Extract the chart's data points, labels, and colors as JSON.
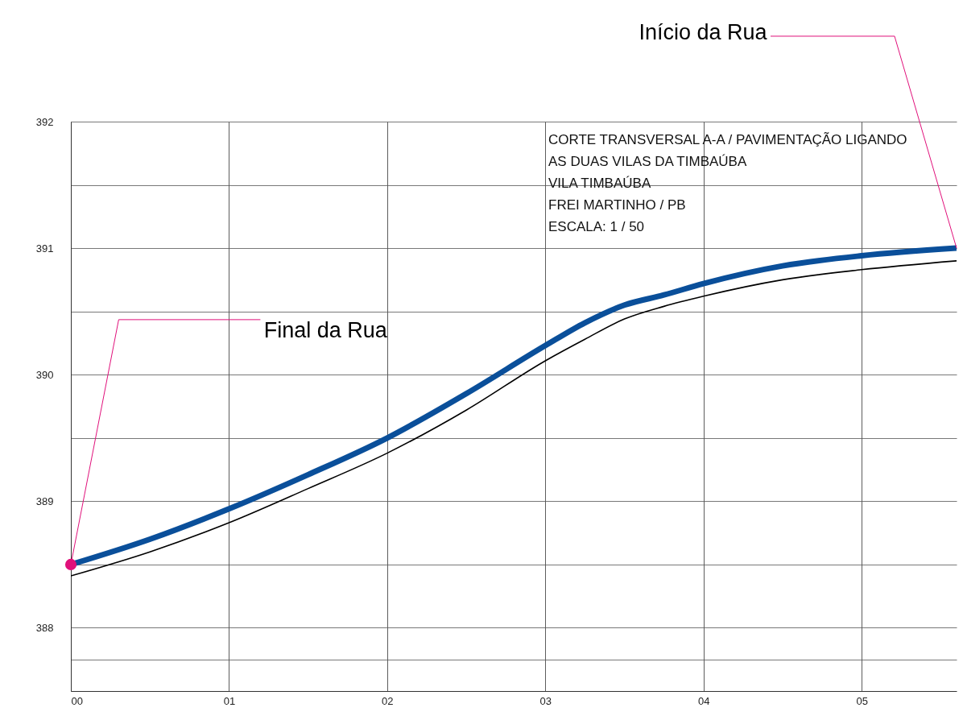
{
  "chart_data": {
    "type": "line",
    "x": [
      0,
      0.5,
      1,
      1.5,
      2,
      2.5,
      3,
      3.25,
      3.5,
      3.75,
      4,
      4.5,
      5,
      5.6
    ],
    "series": [
      {
        "color": "#0a4f9a",
        "values": [
          388.5,
          388.7,
          388.94,
          389.21,
          389.5,
          389.85,
          390.23,
          390.41,
          390.55,
          390.63,
          390.72,
          390.86,
          390.94,
          391.0
        ]
      },
      {
        "color": "#000000",
        "values": [
          388.41,
          388.6,
          388.83,
          389.1,
          389.38,
          389.72,
          390.11,
          390.28,
          390.44,
          390.54,
          390.62,
          390.75,
          390.83,
          390.9
        ]
      },
      {
        "type": "scatter",
        "color": "#e0107a",
        "marker": "circle",
        "x": [
          0
        ],
        "values": [
          388.5
        ]
      }
    ],
    "xlim": [
      0,
      5.6
    ],
    "xticks": [
      {
        "value": 0,
        "label": "00"
      },
      {
        "value": 1,
        "label": "01"
      },
      {
        "value": 2,
        "label": "02"
      },
      {
        "value": 3,
        "label": "03"
      },
      {
        "value": 4,
        "label": "04"
      },
      {
        "value": 5,
        "label": "05"
      }
    ],
    "ylim": [
      387.5,
      392
    ],
    "yticks": [
      {
        "value": 387.75,
        "label": null
      },
      388,
      {
        "value": 388.5,
        "label": null
      },
      389,
      {
        "value": 389.5,
        "label": null
      },
      390,
      {
        "value": 390.5,
        "label": null
      },
      391,
      {
        "value": 391.5,
        "label": null
      },
      392
    ],
    "grid": true,
    "annotations": [
      {
        "text": "Final da Rua",
        "x": 0,
        "y": 388.5
      },
      {
        "text": "Início da Rua",
        "x": 5.6,
        "y": 391.0
      },
      "CORTE TRANSVERSAL A-A / PAVIMENTAÇÃO LIGANDO",
      "AS DUAS VILAS DA TIMBAÚBA",
      "VILA TIMBAÚBA",
      "FREI MARTINHO / PB",
      "ESCALA: 1 / 50"
    ]
  }
}
